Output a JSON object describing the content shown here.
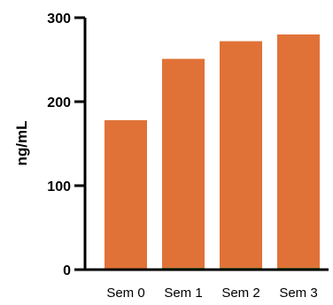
{
  "chart_data": {
    "type": "bar",
    "title": "",
    "xlabel": "",
    "ylabel": "ng/mL",
    "categories": [
      "Sem 0",
      "Sem 1",
      "Sem 2",
      "Sem 3"
    ],
    "values": [
      178,
      251,
      272,
      280
    ],
    "ylim": [
      0,
      300
    ],
    "yticks": [
      0,
      100,
      200,
      300
    ],
    "grid": false,
    "colors": {
      "bar": "#E07238",
      "axis": "#000000",
      "bar_base": "#5B8F2F"
    }
  }
}
